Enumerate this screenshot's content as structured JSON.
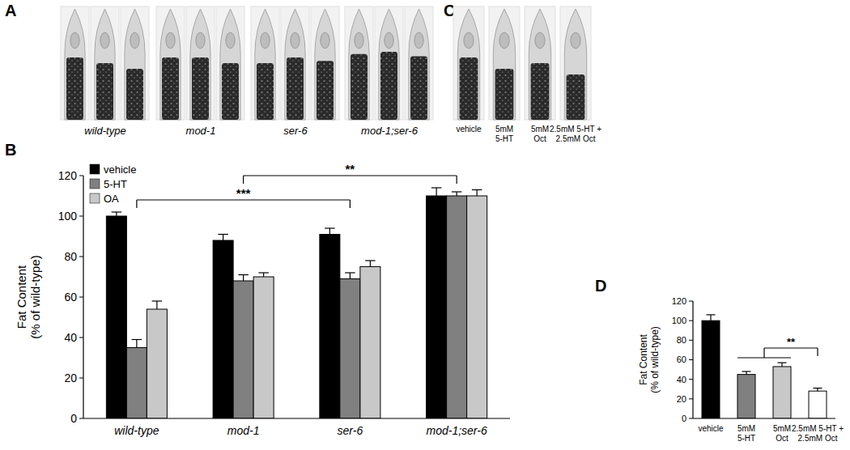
{
  "figure_panels": {
    "A": {
      "label": "A",
      "image_labels": [
        "wild-type",
        "mod-1",
        "ser-6",
        "mod-1;ser-6"
      ]
    },
    "B": {
      "label": "B"
    },
    "C": {
      "label": "C",
      "image_labels": [
        "vehicle",
        "5mM\n5-HT",
        "5mM\nOct",
        "2.5mM 5-HT +\n2.5mM Oct"
      ]
    },
    "D": {
      "label": "D"
    }
  },
  "chart_data": [
    {
      "type": "bar",
      "ylabel": "Fat Content\n(% of wild-type)",
      "categories": [
        "wild-type",
        "mod-1",
        "ser-6",
        "mod-1;ser-6"
      ],
      "series": [
        {
          "name": "vehicle",
          "color": "#000000",
          "values": [
            100,
            88,
            91,
            110
          ],
          "errors": [
            2,
            3,
            3,
            4
          ]
        },
        {
          "name": "5-HT",
          "color": "#808080",
          "values": [
            35,
            68,
            69,
            110
          ],
          "errors": [
            4,
            3,
            3,
            2
          ]
        },
        {
          "name": "OA",
          "color": "#c8c8c8",
          "values": [
            54,
            70,
            75,
            110
          ],
          "errors": [
            4,
            2,
            3,
            3
          ]
        }
      ],
      "ylim": [
        0,
        120
      ],
      "yticks": [
        0,
        20,
        40,
        60,
        80,
        100,
        120
      ],
      "legend": "top-left",
      "annotations": [
        {
          "text": "***",
          "from": "wild-type",
          "to": "ser-6",
          "y": 108
        },
        {
          "text": "**",
          "from": "mod-1",
          "to": "mod-1;ser-6",
          "y": 120
        }
      ]
    },
    {
      "type": "bar",
      "ylabel": "Fat Content\n(% of wild-type)",
      "categories": [
        "vehicle",
        "5mM\n5-HT",
        "5mM\nOct",
        "2.5mM 5-HT +\n2.5mM Oct"
      ],
      "values": [
        100,
        45,
        53,
        28
      ],
      "errors": [
        6,
        3,
        4,
        3
      ],
      "colors": [
        "#000000",
        "#808080",
        "#c8c8c8",
        "#ffffff"
      ],
      "ylim": [
        0,
        120
      ],
      "yticks": [
        0,
        20,
        40,
        60,
        80,
        100,
        120
      ],
      "annotations": [
        {
          "text": "**",
          "from": [
            "5mM\n5-HT",
            "5mM\nOct"
          ],
          "to": "2.5mM 5-HT +\n2.5mM Oct",
          "y": 72
        }
      ]
    }
  ]
}
